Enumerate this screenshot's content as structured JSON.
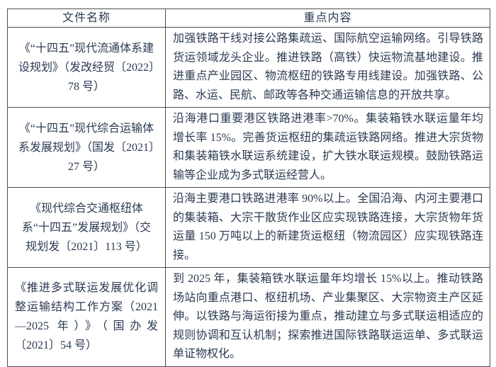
{
  "page": {
    "background_color": "#ffffff",
    "text_color": "#2b3a52",
    "border_color": "#4c4c4c"
  },
  "table": {
    "headers": {
      "name": "文件名称",
      "content": "重点内容"
    },
    "rows": [
      {
        "name": "《“十四五”现代流通体系建设规划》（发改经贸〔2022〕78 号）",
        "content": "加强铁路干线对接公路集疏运、国际航空运输网络。引导铁路货运领域龙头企业。推进铁路（高铁）快运物流基地建设。推进重点产业园区、物流枢纽的铁路专用线建设。加强铁路、公路、水运、民航、邮政等各种交通运输信息的开放共享。"
      },
      {
        "name": "《“十四五”现代综合运输体系发展规划》（国发〔2021〕27 号）",
        "content": "沿海港口重要港区铁路进港率>70%。集装箱铁水联运量年均增长率 15%。完善货运枢纽的集疏运铁路网络。推进大宗货物和集装箱铁水联运系统建设，扩大铁水联运规模。鼓励铁路运输等企业成为多式联运经营人。"
      },
      {
        "name": "《现代综合交通枢纽体系“十四五”发展规划》（交规划发〔2021〕113 号）",
        "content": "沿海主要港口铁路进港率 90%以上。全国沿海、内河主要港口的集装箱、大宗干散货作业区应实现铁路连接，大宗货物年货运量 150 万吨以上的新建货运枢纽（物流园区）应实现铁路连接。"
      },
      {
        "name": "《推进多式联运发展优化调整运输结构工作方案（2021—2025 年）》（国办发〔2021〕54 号）",
        "content": "到 2025 年，集装箱铁水联运量年均增长 15%以上。推动铁路场站向重点港口、枢纽机场、产业集聚区、大宗物资主产区延伸。以铁路与海运衔接为重点，推动建立与多式联运相适应的规则协调和互认机制；探索推进国际铁路联运运单、多式联运单证物权化。"
      }
    ]
  }
}
